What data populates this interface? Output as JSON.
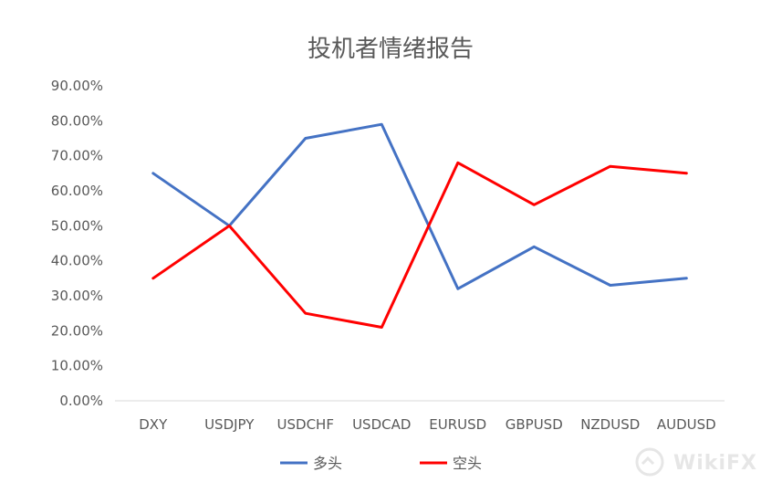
{
  "chart_data": {
    "type": "line",
    "title": "投机者情绪报告",
    "categories": [
      "DXY",
      "USDJPY",
      "USDCHF",
      "USDCAD",
      "EURUSD",
      "GBPUSD",
      "NZDUSD",
      "AUDUSD"
    ],
    "series": [
      {
        "name": "多头",
        "color": "#4472C4",
        "values": [
          65,
          50,
          75,
          79,
          32,
          44,
          33,
          35
        ]
      },
      {
        "name": "空头",
        "color": "#FF0000",
        "values": [
          35,
          50,
          25,
          21,
          68,
          56,
          67,
          65
        ]
      }
    ],
    "y_ticks": [
      "0.00%",
      "10.00%",
      "20.00%",
      "30.00%",
      "40.00%",
      "50.00%",
      "60.00%",
      "70.00%",
      "80.00%",
      "90.00%"
    ],
    "ylim": [
      0,
      90
    ],
    "grid": false,
    "legend_position": "bottom"
  },
  "watermark": "WikiFX"
}
